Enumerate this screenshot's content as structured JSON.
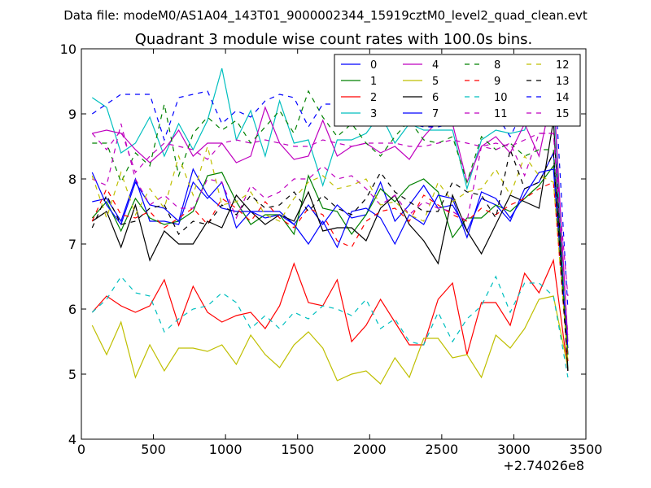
{
  "figure": {
    "suptitle": "Data file: modeM0/AS1A04_143T01_9000002344_15919cztM0_level2_quad_clean.evt"
  },
  "chart_data": {
    "type": "line",
    "title": "Quadrant 3 module wise count rates with 100.0s bins.",
    "xlabel": "",
    "ylabel": "",
    "x_offset_label": "+2.74026e8",
    "xlim": [
      0,
      3500
    ],
    "ylim": [
      4,
      10
    ],
    "xticks": [
      0,
      500,
      1000,
      1500,
      2000,
      2500,
      3000,
      3500
    ],
    "yticks": [
      4,
      5,
      6,
      7,
      8,
      9,
      10
    ],
    "grid": false,
    "legend_location": "top-right",
    "legend_columns": 4,
    "x": [
      75,
      175,
      275,
      375,
      475,
      575,
      675,
      775,
      875,
      975,
      1075,
      1175,
      1275,
      1375,
      1475,
      1575,
      1675,
      1775,
      1875,
      1975,
      2075,
      2175,
      2275,
      2375,
      2475,
      2575,
      2675,
      2775,
      2875,
      2975,
      3075,
      3175,
      3275,
      3375
    ],
    "series": [
      {
        "name": "0",
        "color": "#0000ff",
        "dash": "solid",
        "values": [
          7.65,
          7.7,
          7.35,
          8.0,
          7.35,
          7.35,
          7.3,
          7.95,
          7.7,
          7.95,
          7.25,
          7.5,
          7.5,
          7.5,
          7.3,
          7.6,
          7.3,
          7.6,
          7.4,
          7.45,
          7.95,
          7.35,
          7.6,
          7.9,
          7.55,
          7.6,
          7.2,
          7.7,
          7.6,
          7.35,
          7.85,
          7.95,
          8.4,
          5.3
        ]
      },
      {
        "name": "1",
        "color": "#008000",
        "dash": "solid",
        "values": [
          7.4,
          7.65,
          7.2,
          7.7,
          7.4,
          7.3,
          7.35,
          7.5,
          8.05,
          8.1,
          7.65,
          7.3,
          7.45,
          7.45,
          7.15,
          8.05,
          7.55,
          7.5,
          7.15,
          7.45,
          7.85,
          7.65,
          7.9,
          8.0,
          7.8,
          7.1,
          7.4,
          7.4,
          7.6,
          7.5,
          7.7,
          7.9,
          8.2,
          5.3
        ]
      },
      {
        "name": "2",
        "color": "#ff0000",
        "dash": "solid",
        "values": [
          5.95,
          6.2,
          6.05,
          5.95,
          6.05,
          6.45,
          5.75,
          6.35,
          5.95,
          5.8,
          5.9,
          5.95,
          5.7,
          6.05,
          6.7,
          6.1,
          6.05,
          6.45,
          5.5,
          5.75,
          6.15,
          5.8,
          5.45,
          5.45,
          6.15,
          6.4,
          5.3,
          6.1,
          6.1,
          5.75,
          6.55,
          6.25,
          6.75,
          5.05
        ]
      },
      {
        "name": "3",
        "color": "#00bfbf",
        "dash": "solid",
        "values": [
          9.25,
          9.1,
          8.4,
          8.55,
          8.95,
          8.35,
          8.85,
          8.45,
          8.9,
          9.7,
          8.6,
          9.05,
          8.35,
          9.2,
          8.55,
          8.6,
          7.9,
          8.6,
          8.6,
          8.7,
          9.0,
          8.55,
          8.85,
          8.75,
          8.75,
          8.75,
          7.85,
          8.6,
          8.75,
          8.7,
          8.75,
          9.4,
          9.3,
          5.1
        ]
      },
      {
        "name": "4",
        "color": "#bf00bf",
        "dash": "solid",
        "values": [
          8.7,
          8.75,
          8.7,
          8.45,
          8.25,
          8.45,
          8.75,
          8.35,
          8.55,
          8.55,
          8.25,
          8.35,
          9.1,
          8.55,
          8.3,
          8.35,
          8.9,
          8.35,
          8.5,
          8.55,
          8.4,
          8.5,
          8.3,
          8.65,
          8.9,
          8.85,
          7.95,
          8.5,
          8.65,
          8.4,
          8.85,
          8.35,
          9.4,
          5.5
        ]
      },
      {
        "name": "5",
        "color": "#bfbf00",
        "dash": "solid",
        "values": [
          5.75,
          5.3,
          5.8,
          4.95,
          5.45,
          5.05,
          5.4,
          5.4,
          5.35,
          5.45,
          5.15,
          5.6,
          5.3,
          5.1,
          5.45,
          5.65,
          5.4,
          4.9,
          5.0,
          5.05,
          4.85,
          5.25,
          4.95,
          5.55,
          5.55,
          5.25,
          5.3,
          4.95,
          5.6,
          5.4,
          5.7,
          6.15,
          6.2,
          5.1
        ]
      },
      {
        "name": "6",
        "color": "#000000",
        "dash": "solid",
        "values": [
          7.35,
          7.5,
          6.95,
          7.6,
          6.75,
          7.2,
          7.0,
          7.0,
          7.35,
          7.25,
          7.75,
          7.5,
          7.3,
          7.45,
          7.35,
          7.8,
          7.2,
          7.25,
          7.25,
          7.05,
          7.55,
          7.75,
          7.3,
          7.05,
          6.7,
          7.75,
          7.2,
          6.85,
          7.3,
          7.75,
          7.65,
          7.55,
          8.9,
          5.05
        ]
      },
      {
        "name": "7",
        "color": "#0000ff",
        "dash": "solid",
        "values": [
          8.1,
          7.6,
          7.3,
          7.95,
          7.6,
          7.55,
          7.35,
          8.15,
          7.75,
          7.55,
          7.5,
          7.5,
          7.4,
          7.45,
          7.3,
          7.0,
          7.35,
          6.95,
          7.5,
          7.55,
          7.4,
          7.0,
          7.45,
          7.3,
          7.75,
          7.7,
          7.1,
          7.8,
          7.7,
          7.4,
          7.75,
          8.1,
          8.15,
          5.4
        ]
      },
      {
        "name": "8",
        "color": "#008000",
        "dash": "dashed",
        "values": [
          8.55,
          8.55,
          7.95,
          8.4,
          8.2,
          9.15,
          8.05,
          8.7,
          8.95,
          8.75,
          8.9,
          8.55,
          8.8,
          9.05,
          8.7,
          9.35,
          8.95,
          8.65,
          8.85,
          8.55,
          8.35,
          8.65,
          8.9,
          8.6,
          8.55,
          8.65,
          7.95,
          8.65,
          8.45,
          8.55,
          8.35,
          8.45,
          8.45,
          5.3
        ]
      },
      {
        "name": "9",
        "color": "#ff0000",
        "dash": "dashed",
        "values": [
          7.35,
          7.85,
          7.45,
          7.4,
          7.5,
          7.25,
          7.4,
          7.55,
          7.3,
          7.7,
          7.55,
          7.35,
          7.65,
          7.4,
          7.25,
          7.55,
          7.45,
          7.05,
          6.95,
          7.35,
          7.5,
          7.55,
          7.35,
          7.75,
          7.6,
          7.45,
          7.35,
          7.55,
          7.45,
          7.6,
          7.7,
          7.85,
          7.95,
          5.2
        ]
      },
      {
        "name": "10",
        "color": "#00bfbf",
        "dash": "dashed",
        "values": [
          5.95,
          6.15,
          6.5,
          6.25,
          6.2,
          5.65,
          5.85,
          6.0,
          6.05,
          6.25,
          6.1,
          5.7,
          5.9,
          5.7,
          5.95,
          5.85,
          6.05,
          6.0,
          5.9,
          6.15,
          5.7,
          5.85,
          5.5,
          5.45,
          5.95,
          5.5,
          5.85,
          6.05,
          6.5,
          5.95,
          6.4,
          6.4,
          6.2,
          4.95
        ]
      },
      {
        "name": "11",
        "color": "#bf00bf",
        "dash": "dashed",
        "values": [
          8.0,
          7.9,
          8.85,
          8.0,
          7.6,
          7.75,
          7.55,
          7.55,
          8.0,
          7.95,
          7.4,
          7.9,
          7.7,
          7.8,
          8.0,
          8.0,
          8.2,
          8.0,
          8.05,
          7.85,
          7.6,
          7.75,
          7.45,
          7.65,
          7.55,
          7.5,
          7.35,
          8.5,
          8.45,
          8.55,
          8.05,
          8.7,
          8.7,
          5.6
        ]
      },
      {
        "name": "12",
        "color": "#bfbf00",
        "dash": "dashed",
        "values": [
          8.05,
          7.4,
          8.1,
          7.45,
          7.85,
          7.55,
          8.35,
          7.75,
          8.5,
          7.6,
          7.65,
          7.8,
          7.45,
          7.35,
          7.7,
          7.95,
          8.05,
          7.85,
          7.9,
          8.0,
          7.6,
          7.65,
          7.45,
          7.35,
          7.95,
          7.65,
          7.8,
          7.85,
          8.15,
          7.75,
          8.35,
          8.05,
          7.95,
          5.2
        ]
      },
      {
        "name": "13",
        "color": "#000000",
        "dash": "dashed",
        "values": [
          7.25,
          7.75,
          7.3,
          7.35,
          7.55,
          7.6,
          7.15,
          7.35,
          7.3,
          7.6,
          7.45,
          7.75,
          7.55,
          7.6,
          7.8,
          7.5,
          7.75,
          7.55,
          7.45,
          7.7,
          8.1,
          7.8,
          7.65,
          7.5,
          7.5,
          7.95,
          7.8,
          7.75,
          7.4,
          8.45,
          7.85,
          7.95,
          8.4,
          5.05
        ]
      },
      {
        "name": "14",
        "color": "#0000ff",
        "dash": "dashed",
        "values": [
          9.0,
          9.15,
          9.3,
          9.3,
          9.3,
          8.6,
          9.25,
          9.3,
          9.35,
          8.85,
          9.05,
          8.95,
          9.2,
          9.3,
          9.25,
          8.8,
          9.15,
          9.15,
          9.05,
          9.05,
          8.95,
          8.95,
          8.85,
          8.8,
          8.8,
          8.85,
          9.05,
          8.95,
          9.0,
          8.65,
          9.1,
          8.9,
          9.85,
          6.0
        ]
      },
      {
        "name": "15",
        "color": "#bf00bf",
        "dash": "dashed",
        "values": [
          8.7,
          8.45,
          8.75,
          8.1,
          8.35,
          8.55,
          8.5,
          8.45,
          8.3,
          8.55,
          8.6,
          8.55,
          8.6,
          8.55,
          8.5,
          8.5,
          8.6,
          8.55,
          8.5,
          8.55,
          8.55,
          8.55,
          8.5,
          8.5,
          8.55,
          8.6,
          8.55,
          8.5,
          8.55,
          8.5,
          8.6,
          8.7,
          8.7,
          6.2
        ]
      }
    ]
  }
}
